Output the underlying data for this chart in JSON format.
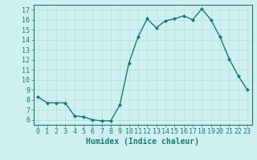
{
  "x": [
    0,
    1,
    2,
    3,
    4,
    5,
    6,
    7,
    8,
    9,
    10,
    11,
    12,
    13,
    14,
    15,
    16,
    17,
    18,
    19,
    20,
    21,
    22,
    23
  ],
  "y": [
    8.3,
    7.7,
    7.7,
    7.7,
    6.4,
    6.3,
    6.0,
    5.9,
    5.9,
    7.5,
    11.7,
    14.3,
    16.1,
    15.2,
    15.9,
    16.1,
    16.4,
    16.0,
    17.1,
    16.0,
    14.3,
    12.1,
    10.4,
    9.0
  ],
  "line_color": "#1a7a6e",
  "marker": "D",
  "marker_size": 2,
  "xlabel": "Humidex (Indice chaleur)",
  "xlabel_fontsize": 7,
  "bg_color": "#cff0f0",
  "grid_color": "#b8dede",
  "axis_color": "#1a7a6e",
  "tick_color": "#1a7a6e",
  "xlim": [
    -0.5,
    23.5
  ],
  "ylim": [
    5.5,
    17.5
  ],
  "yticks": [
    6,
    7,
    8,
    9,
    10,
    11,
    12,
    13,
    14,
    15,
    16,
    17
  ],
  "xticks": [
    0,
    1,
    2,
    3,
    4,
    5,
    6,
    7,
    8,
    9,
    10,
    11,
    12,
    13,
    14,
    15,
    16,
    17,
    18,
    19,
    20,
    21,
    22,
    23
  ],
  "tick_fontsize": 6,
  "line_width": 1.0
}
